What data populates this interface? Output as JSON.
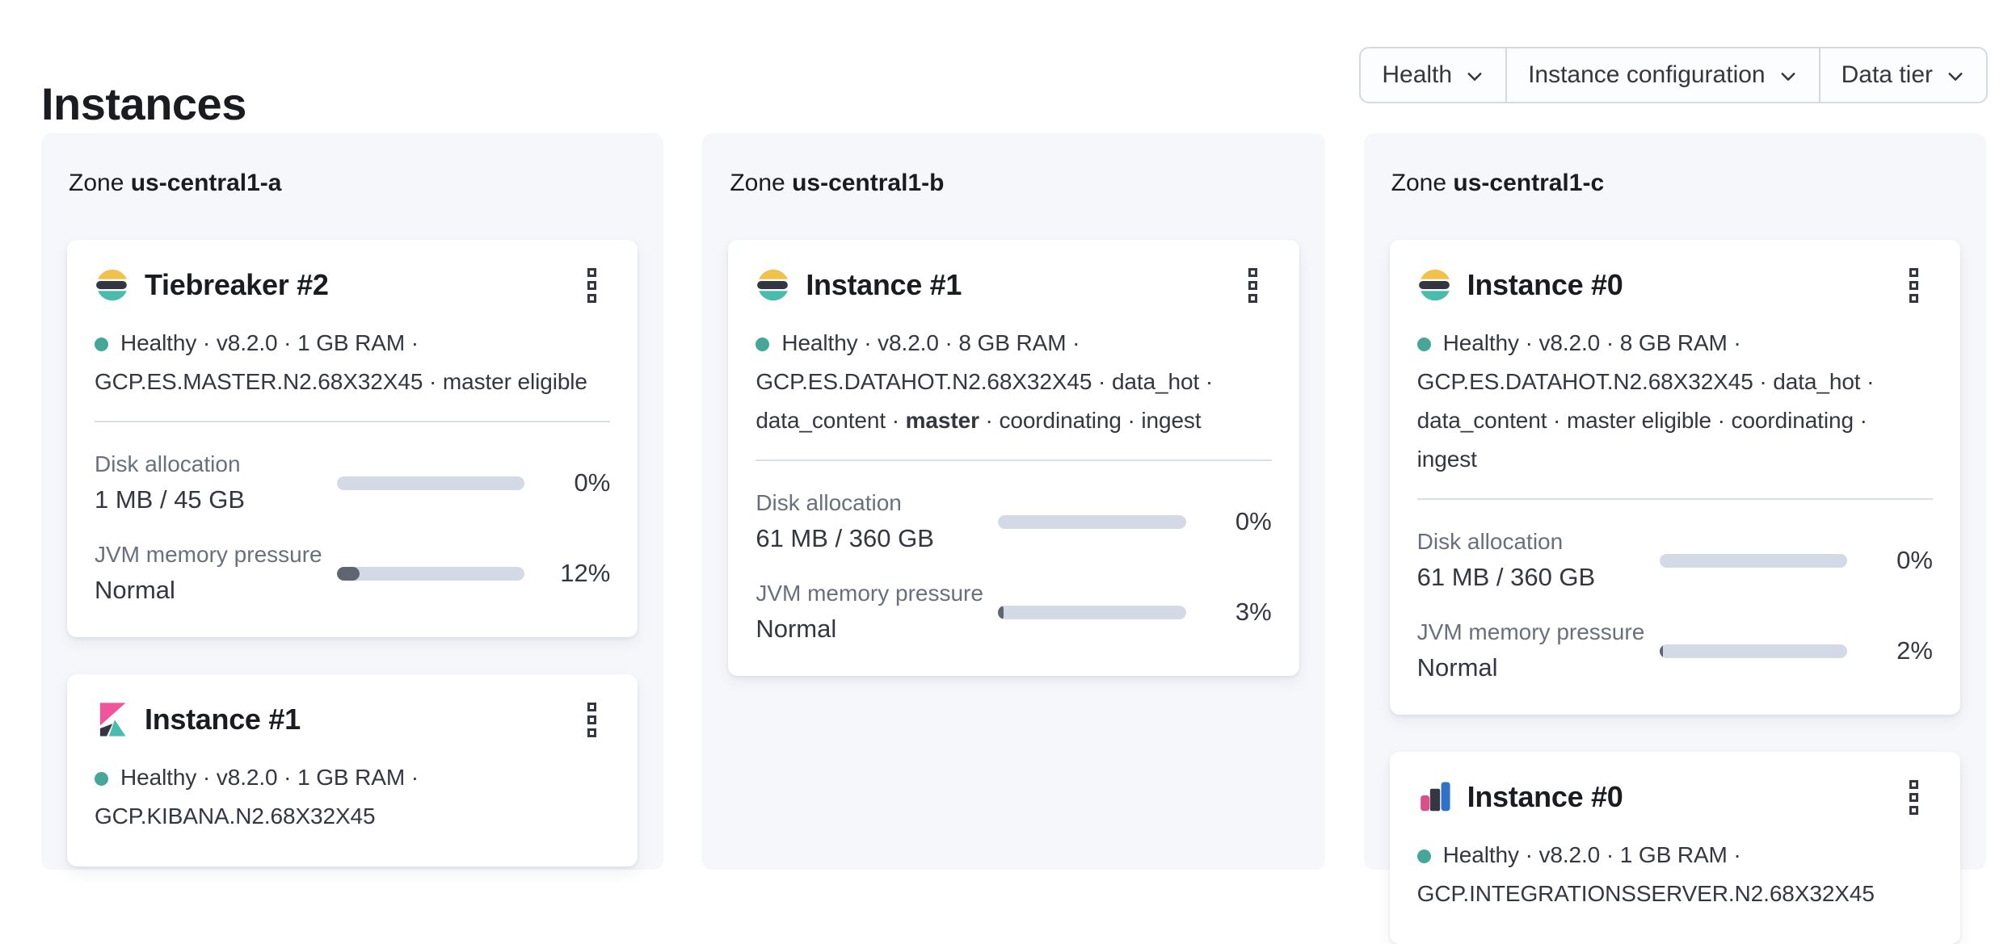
{
  "page": {
    "title": "Instances"
  },
  "filters": {
    "health_label": "Health",
    "instance_configuration_label": "Instance configuration",
    "data_tier_label": "Data tier"
  },
  "colors": {
    "health_dot": "#44a797",
    "bar_track": "#d3dae6",
    "bar_fill": "#5f6671",
    "elastic_yellow": "#f1c24b",
    "elastic_dark": "#343741",
    "elastic_teal": "#49bcad",
    "kibana_pink": "#f0559b",
    "integrations_blue": "#3072c8",
    "panel_background": "#f6f7fb"
  },
  "zones": [
    {
      "label": "Zone",
      "name": "us-central1-a",
      "cards": [
        {
          "icon": "elasticsearch-logo",
          "title": "Tiebreaker #2",
          "line1": "Healthy · v8.2.0 · 1 GB RAM ·",
          "line2": "GCP.ES.MASTER.N2.68X32X45 · master eligible",
          "disk": {
            "label": "Disk allocation",
            "value": "1 MB / 45 GB",
            "percent": 0,
            "percent_label": "0%"
          },
          "jvm": {
            "label": "JVM memory pressure",
            "value": "Normal",
            "percent": 12,
            "percent_label": "12%"
          }
        },
        {
          "icon": "kibana-logo",
          "title": "Instance #1",
          "line1": "Healthy · v8.2.0 · 1 GB RAM ·",
          "line2": "GCP.KIBANA.N2.68X32X45"
        }
      ]
    },
    {
      "label": "Zone",
      "name": "us-central1-b",
      "cards": [
        {
          "icon": "elasticsearch-logo",
          "title": "Instance #1",
          "line1": "Healthy · v8.2.0 · 8 GB RAM ·",
          "line2": "GCP.ES.DATAHOT.N2.68X32X45 · data_hot ·",
          "line3_pre": "data_content · ",
          "line3_bold": "master",
          "line3_post": " · coordinating · ingest",
          "disk": {
            "label": "Disk allocation",
            "value": "61 MB / 360 GB",
            "percent": 0,
            "percent_label": "0%"
          },
          "jvm": {
            "label": "JVM memory pressure",
            "value": "Normal",
            "percent": 3,
            "percent_label": "3%"
          }
        }
      ]
    },
    {
      "label": "Zone",
      "name": "us-central1-c",
      "cards": [
        {
          "icon": "elasticsearch-logo",
          "title": "Instance #0",
          "line1": "Healthy · v8.2.0 · 8 GB RAM ·",
          "line2": "GCP.ES.DATAHOT.N2.68X32X45 · data_hot ·",
          "line3": "data_content · master eligible · coordinating · ingest",
          "disk": {
            "label": "Disk allocation",
            "value": "61 MB / 360 GB",
            "percent": 0,
            "percent_label": "0%"
          },
          "jvm": {
            "label": "JVM memory pressure",
            "value": "Normal",
            "percent": 2,
            "percent_label": "2%"
          }
        },
        {
          "icon": "integrations-server-logo",
          "title": "Instance #0",
          "line1": "Healthy · v8.2.0 · 1 GB RAM ·",
          "line2": "GCP.INTEGRATIONSSERVER.N2.68X32X45"
        }
      ]
    }
  ]
}
